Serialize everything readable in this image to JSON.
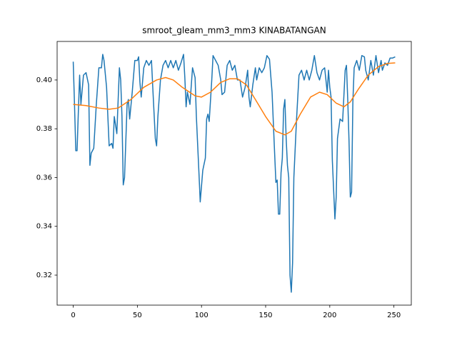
{
  "chart_data": {
    "type": "line",
    "title": "smroot_gleam_mm3_mm3 KINABATANGAN",
    "xlim": [
      -12.55,
      263.55
    ],
    "xticks": [
      0,
      50,
      100,
      150,
      200,
      250
    ],
    "ylim": [
      0.3077,
      0.4158
    ],
    "yticks": [
      {
        "value": 0.32,
        "label": "0.32"
      },
      {
        "value": 0.34,
        "label": "0.34"
      },
      {
        "value": 0.36,
        "label": "0.36"
      },
      {
        "value": 0.38,
        "label": "0.38"
      },
      {
        "value": 0.4,
        "label": "0.40"
      }
    ],
    "series": [
      {
        "color": "#1f77b4",
        "x": [
          0,
          1,
          2,
          3,
          4,
          5,
          6,
          7,
          8,
          10,
          12,
          13,
          14,
          16,
          18,
          20,
          22,
          23,
          24,
          26,
          27,
          28,
          30,
          31,
          32,
          34,
          36,
          37,
          38,
          39,
          40,
          42,
          43,
          44,
          46,
          48,
          50,
          51,
          52,
          53,
          55,
          57,
          59,
          61,
          62,
          64,
          65,
          66,
          68,
          70,
          72,
          74,
          76,
          78,
          80,
          82,
          84,
          86,
          87,
          88,
          89,
          91,
          93,
          95,
          96,
          98,
          99,
          101,
          103,
          104,
          105,
          106,
          108,
          109,
          111,
          113,
          115,
          116,
          118,
          120,
          122,
          124,
          126,
          128,
          130,
          132,
          134,
          136,
          137,
          138,
          140,
          142,
          143,
          145,
          147,
          149,
          151,
          153,
          155,
          157,
          158,
          159,
          160,
          161,
          162,
          163,
          164,
          165,
          166,
          167,
          168,
          169,
          170,
          171,
          172,
          174,
          176,
          178,
          180,
          182,
          184,
          186,
          188,
          190,
          192,
          194,
          196,
          198,
          199,
          200,
          201,
          202,
          203,
          204,
          205,
          206,
          208,
          210,
          212,
          213,
          214,
          215,
          216,
          217,
          218,
          219,
          221,
          223,
          225,
          227,
          228,
          230,
          232,
          234,
          236,
          238,
          240,
          241,
          243,
          245,
          247,
          249,
          251
        ],
        "values": [
          0.4075,
          0.39,
          0.371,
          0.371,
          0.387,
          0.402,
          0.39,
          0.396,
          0.402,
          0.403,
          0.398,
          0.365,
          0.37,
          0.372,
          0.39,
          0.405,
          0.405,
          0.4105,
          0.408,
          0.397,
          0.385,
          0.373,
          0.374,
          0.372,
          0.385,
          0.378,
          0.405,
          0.4,
          0.385,
          0.357,
          0.36,
          0.39,
          0.392,
          0.384,
          0.395,
          0.408,
          0.408,
          0.4095,
          0.399,
          0.393,
          0.405,
          0.408,
          0.406,
          0.408,
          0.397,
          0.376,
          0.373,
          0.385,
          0.4,
          0.406,
          0.408,
          0.405,
          0.408,
          0.405,
          0.408,
          0.404,
          0.407,
          0.4105,
          0.401,
          0.389,
          0.395,
          0.39,
          0.405,
          0.401,
          0.385,
          0.362,
          0.35,
          0.363,
          0.368,
          0.384,
          0.386,
          0.383,
          0.4,
          0.41,
          0.408,
          0.406,
          0.4,
          0.394,
          0.395,
          0.406,
          0.408,
          0.404,
          0.406,
          0.4,
          0.4,
          0.393,
          0.397,
          0.404,
          0.393,
          0.389,
          0.398,
          0.405,
          0.4,
          0.405,
          0.403,
          0.405,
          0.41,
          0.4085,
          0.395,
          0.37,
          0.358,
          0.359,
          0.345,
          0.345,
          0.362,
          0.368,
          0.388,
          0.392,
          0.376,
          0.365,
          0.36,
          0.32,
          0.313,
          0.325,
          0.36,
          0.383,
          0.402,
          0.404,
          0.4,
          0.404,
          0.4,
          0.404,
          0.41,
          0.403,
          0.4,
          0.404,
          0.405,
          0.395,
          0.404,
          0.397,
          0.393,
          0.367,
          0.355,
          0.343,
          0.352,
          0.376,
          0.384,
          0.383,
          0.404,
          0.406,
          0.392,
          0.375,
          0.352,
          0.354,
          0.391,
          0.405,
          0.408,
          0.404,
          0.41,
          0.4095,
          0.404,
          0.4,
          0.408,
          0.402,
          0.41,
          0.403,
          0.408,
          0.404,
          0.407,
          0.406,
          0.409,
          0.409,
          0.4095
        ]
      },
      {
        "color": "#ff7f0e",
        "x": [
          0,
          10,
          20,
          28,
          35,
          45,
          55,
          65,
          72,
          78,
          85,
          95,
          100,
          107,
          115,
          122,
          128,
          135,
          142,
          150,
          158,
          165,
          170,
          177,
          185,
          192,
          198,
          205,
          211,
          216,
          222,
          230,
          238,
          245,
          251
        ],
        "values": [
          0.39,
          0.3895,
          0.3885,
          0.388,
          0.3885,
          0.392,
          0.397,
          0.4,
          0.401,
          0.4,
          0.397,
          0.3935,
          0.393,
          0.395,
          0.399,
          0.4005,
          0.4005,
          0.398,
          0.392,
          0.385,
          0.379,
          0.3775,
          0.379,
          0.386,
          0.393,
          0.395,
          0.394,
          0.3905,
          0.389,
          0.391,
          0.396,
          0.402,
          0.4055,
          0.4068,
          0.407
        ]
      }
    ]
  }
}
